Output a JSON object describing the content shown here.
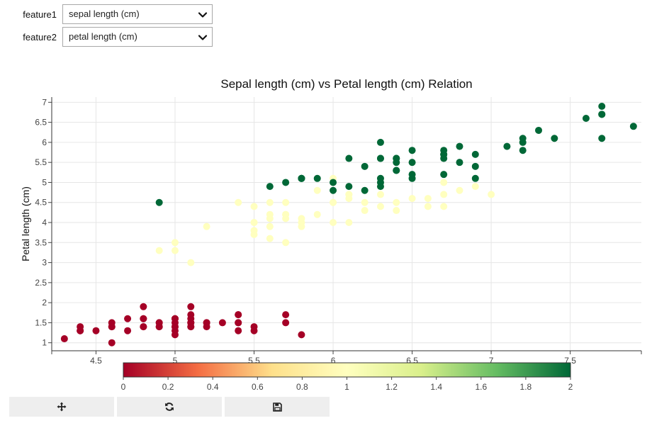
{
  "controls": {
    "feature1": {
      "label": "feature1",
      "value": "sepal length (cm)"
    },
    "feature2": {
      "label": "feature2",
      "value": "petal length (cm)"
    }
  },
  "toolbar": {
    "buttons": [
      {
        "name": "pan-button",
        "icon": "move-icon"
      },
      {
        "name": "reset-button",
        "icon": "refresh-icon"
      },
      {
        "name": "save-button",
        "icon": "floppy-disk-icon"
      }
    ]
  },
  "chart_data": {
    "type": "scatter",
    "title": "Sepal length (cm) vs Petal length (cm) Relation",
    "xlabel": "",
    "ylabel": "Petal length (cm)",
    "xlim": [
      4.22,
      7.95
    ],
    "ylim": [
      0.8,
      7.13
    ],
    "xticks": [
      "4.5",
      "5",
      "5.5",
      "6",
      "6.5",
      "7",
      "7.5"
    ],
    "yticks": [
      "1",
      "1.5",
      "2",
      "2.5",
      "3",
      "3.5",
      "4",
      "4.5",
      "5",
      "5.5",
      "6",
      "6.5",
      "7"
    ],
    "grid": true,
    "colorbar": {
      "min": 0,
      "max": 2,
      "ticks": [
        "0",
        "0.2",
        "0.4",
        "0.6",
        "0.8",
        "1",
        "1.2",
        "1.4",
        "1.6",
        "1.8",
        "2"
      ],
      "colors": [
        "#a50026",
        "#f46d43",
        "#fee08b",
        "#ffffbf",
        "#d9ef8b",
        "#66bd63",
        "#006837"
      ]
    },
    "points": [
      [
        5.1,
        1.4,
        0
      ],
      [
        4.9,
        1.4,
        0
      ],
      [
        4.7,
        1.3,
        0
      ],
      [
        4.6,
        1.5,
        0
      ],
      [
        5.0,
        1.4,
        0
      ],
      [
        5.4,
        1.7,
        0
      ],
      [
        4.6,
        1.4,
        0
      ],
      [
        5.0,
        1.5,
        0
      ],
      [
        4.4,
        1.4,
        0
      ],
      [
        4.9,
        1.5,
        0
      ],
      [
        5.4,
        1.5,
        0
      ],
      [
        4.8,
        1.6,
        0
      ],
      [
        4.8,
        1.4,
        0
      ],
      [
        4.3,
        1.1,
        0
      ],
      [
        5.8,
        1.2,
        0
      ],
      [
        5.7,
        1.5,
        0
      ],
      [
        5.4,
        1.3,
        0
      ],
      [
        5.1,
        1.4,
        0
      ],
      [
        5.7,
        1.7,
        0
      ],
      [
        5.1,
        1.5,
        0
      ],
      [
        5.4,
        1.7,
        0
      ],
      [
        5.1,
        1.5,
        0
      ],
      [
        4.6,
        1.0,
        0
      ],
      [
        5.1,
        1.7,
        0
      ],
      [
        4.8,
        1.9,
        0
      ],
      [
        5.0,
        1.6,
        0
      ],
      [
        5.0,
        1.6,
        0
      ],
      [
        5.2,
        1.5,
        0
      ],
      [
        5.2,
        1.4,
        0
      ],
      [
        4.7,
        1.6,
        0
      ],
      [
        4.8,
        1.6,
        0
      ],
      [
        5.4,
        1.5,
        0
      ],
      [
        5.2,
        1.5,
        0
      ],
      [
        5.5,
        1.4,
        0
      ],
      [
        4.9,
        1.5,
        0
      ],
      [
        5.0,
        1.2,
        0
      ],
      [
        5.5,
        1.3,
        0
      ],
      [
        4.9,
        1.4,
        0
      ],
      [
        4.4,
        1.3,
        0
      ],
      [
        5.1,
        1.5,
        0
      ],
      [
        5.0,
        1.3,
        0
      ],
      [
        4.5,
        1.3,
        0
      ],
      [
        4.4,
        1.3,
        0
      ],
      [
        5.0,
        1.6,
        0
      ],
      [
        5.1,
        1.9,
        0
      ],
      [
        4.8,
        1.4,
        0
      ],
      [
        5.1,
        1.6,
        0
      ],
      [
        4.6,
        1.4,
        0
      ],
      [
        5.3,
        1.5,
        0
      ],
      [
        5.0,
        1.4,
        0
      ],
      [
        7.0,
        4.7,
        1
      ],
      [
        6.4,
        4.5,
        1
      ],
      [
        6.9,
        4.9,
        1
      ],
      [
        5.5,
        4.0,
        1
      ],
      [
        6.5,
        4.6,
        1
      ],
      [
        5.7,
        4.5,
        1
      ],
      [
        6.3,
        4.7,
        1
      ],
      [
        4.9,
        3.3,
        1
      ],
      [
        6.6,
        4.6,
        1
      ],
      [
        5.2,
        3.9,
        1
      ],
      [
        5.0,
        3.5,
        1
      ],
      [
        5.9,
        4.2,
        1
      ],
      [
        6.0,
        4.0,
        1
      ],
      [
        6.1,
        4.7,
        1
      ],
      [
        5.6,
        3.6,
        1
      ],
      [
        6.7,
        4.4,
        1
      ],
      [
        5.6,
        4.5,
        1
      ],
      [
        5.8,
        4.1,
        1
      ],
      [
        6.2,
        4.5,
        1
      ],
      [
        5.6,
        3.9,
        1
      ],
      [
        5.9,
        4.8,
        1
      ],
      [
        6.1,
        4.0,
        1
      ],
      [
        6.3,
        4.9,
        1
      ],
      [
        6.1,
        4.7,
        1
      ],
      [
        6.4,
        4.3,
        1
      ],
      [
        6.6,
        4.4,
        1
      ],
      [
        6.8,
        4.8,
        1
      ],
      [
        6.7,
        5.0,
        1
      ],
      [
        6.0,
        4.5,
        1
      ],
      [
        5.7,
        3.5,
        1
      ],
      [
        5.5,
        3.8,
        1
      ],
      [
        5.5,
        3.7,
        1
      ],
      [
        5.8,
        3.9,
        1
      ],
      [
        6.0,
        5.1,
        1
      ],
      [
        5.4,
        4.5,
        1
      ],
      [
        6.0,
        4.5,
        1
      ],
      [
        6.7,
        4.7,
        1
      ],
      [
        6.3,
        4.4,
        1
      ],
      [
        5.6,
        4.1,
        1
      ],
      [
        5.5,
        4.0,
        1
      ],
      [
        5.5,
        4.4,
        1
      ],
      [
        6.1,
        4.6,
        1
      ],
      [
        5.8,
        4.0,
        1
      ],
      [
        5.0,
        3.3,
        1
      ],
      [
        5.6,
        4.2,
        1
      ],
      [
        5.7,
        4.2,
        1
      ],
      [
        5.7,
        4.2,
        1
      ],
      [
        6.2,
        4.3,
        1
      ],
      [
        5.1,
        3.0,
        1
      ],
      [
        5.7,
        4.1,
        1
      ],
      [
        6.3,
        6.0,
        2
      ],
      [
        5.8,
        5.1,
        2
      ],
      [
        7.1,
        5.9,
        2
      ],
      [
        6.3,
        5.6,
        2
      ],
      [
        6.5,
        5.8,
        2
      ],
      [
        7.6,
        6.6,
        2
      ],
      [
        4.9,
        4.5,
        2
      ],
      [
        7.3,
        6.3,
        2
      ],
      [
        6.7,
        5.8,
        2
      ],
      [
        7.2,
        6.1,
        2
      ],
      [
        6.5,
        5.1,
        2
      ],
      [
        6.4,
        5.3,
        2
      ],
      [
        6.8,
        5.5,
        2
      ],
      [
        5.7,
        5.0,
        2
      ],
      [
        5.8,
        5.1,
        2
      ],
      [
        6.4,
        5.3,
        2
      ],
      [
        6.5,
        5.5,
        2
      ],
      [
        7.7,
        6.7,
        2
      ],
      [
        7.7,
        6.9,
        2
      ],
      [
        6.0,
        5.0,
        2
      ],
      [
        6.9,
        5.7,
        2
      ],
      [
        5.6,
        4.9,
        2
      ],
      [
        7.7,
        6.7,
        2
      ],
      [
        6.3,
        4.9,
        2
      ],
      [
        6.7,
        5.7,
        2
      ],
      [
        7.2,
        6.0,
        2
      ],
      [
        6.2,
        4.8,
        2
      ],
      [
        6.1,
        4.9,
        2
      ],
      [
        6.4,
        5.6,
        2
      ],
      [
        7.2,
        5.8,
        2
      ],
      [
        7.4,
        6.1,
        2
      ],
      [
        7.9,
        6.4,
        2
      ],
      [
        6.4,
        5.6,
        2
      ],
      [
        6.3,
        5.1,
        2
      ],
      [
        6.1,
        5.6,
        2
      ],
      [
        7.7,
        6.1,
        2
      ],
      [
        6.3,
        5.6,
        2
      ],
      [
        6.4,
        5.5,
        2
      ],
      [
        6.0,
        4.8,
        2
      ],
      [
        6.9,
        5.4,
        2
      ],
      [
        6.7,
        5.6,
        2
      ],
      [
        6.9,
        5.1,
        2
      ],
      [
        5.8,
        5.1,
        2
      ],
      [
        6.8,
        5.9,
        2
      ],
      [
        6.7,
        5.7,
        2
      ],
      [
        6.7,
        5.2,
        2
      ],
      [
        6.3,
        5.0,
        2
      ],
      [
        6.5,
        5.2,
        2
      ],
      [
        6.2,
        5.4,
        2
      ],
      [
        5.9,
        5.1,
        2
      ]
    ]
  }
}
